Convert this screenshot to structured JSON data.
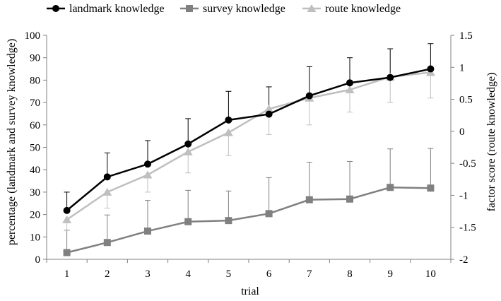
{
  "chart_data": {
    "type": "line",
    "x": [
      1,
      2,
      3,
      4,
      5,
      6,
      7,
      8,
      9,
      10
    ],
    "xlabel": "trial",
    "ylabel": "percentage (landmark and survey knowledge)",
    "y2label": "factor score (route knowledge)",
    "ylim": [
      0,
      100
    ],
    "y2lim": [
      -2,
      1.5
    ],
    "yticks": [
      0,
      10,
      20,
      30,
      40,
      50,
      60,
      70,
      80,
      90,
      100
    ],
    "y2ticks": [
      "-2",
      "-1.5",
      "-1",
      "-0.5",
      "0",
      "0.5",
      "1",
      "1.5"
    ],
    "legend_position": "top",
    "grid": false,
    "series": [
      {
        "name": "landmark knowledge",
        "axis": "left",
        "color": "#000000",
        "marker": "circle",
        "values": [
          21.8,
          36.8,
          42.5,
          51.5,
          62.2,
          64.8,
          73.0,
          78.8,
          81.2,
          85.0
        ],
        "error_upper": [
          30.0,
          47.5,
          53.0,
          62.8,
          75.0,
          77.0,
          86.0,
          90.0,
          94.0,
          96.3
        ]
      },
      {
        "name": "survey knowledge",
        "axis": "left",
        "color": "#808080",
        "marker": "square",
        "values": [
          3.0,
          7.5,
          12.6,
          16.8,
          17.3,
          20.4,
          26.6,
          26.9,
          32.1,
          31.8
        ],
        "error_upper": [
          13.0,
          19.8,
          26.3,
          30.8,
          30.5,
          36.5,
          43.3,
          43.7,
          49.3,
          49.5
        ]
      },
      {
        "name": "route knowledge",
        "axis": "right",
        "color": "#bfbfbf",
        "marker": "triangle",
        "values": [
          -1.38,
          -0.95,
          -0.68,
          -0.32,
          -0.02,
          0.35,
          0.52,
          0.65,
          0.85,
          0.92
        ],
        "error_lower": [
          -1.55,
          -1.2,
          -0.95,
          -0.65,
          -0.38,
          -0.05,
          0.1,
          0.3,
          0.45,
          0.52
        ]
      }
    ]
  }
}
